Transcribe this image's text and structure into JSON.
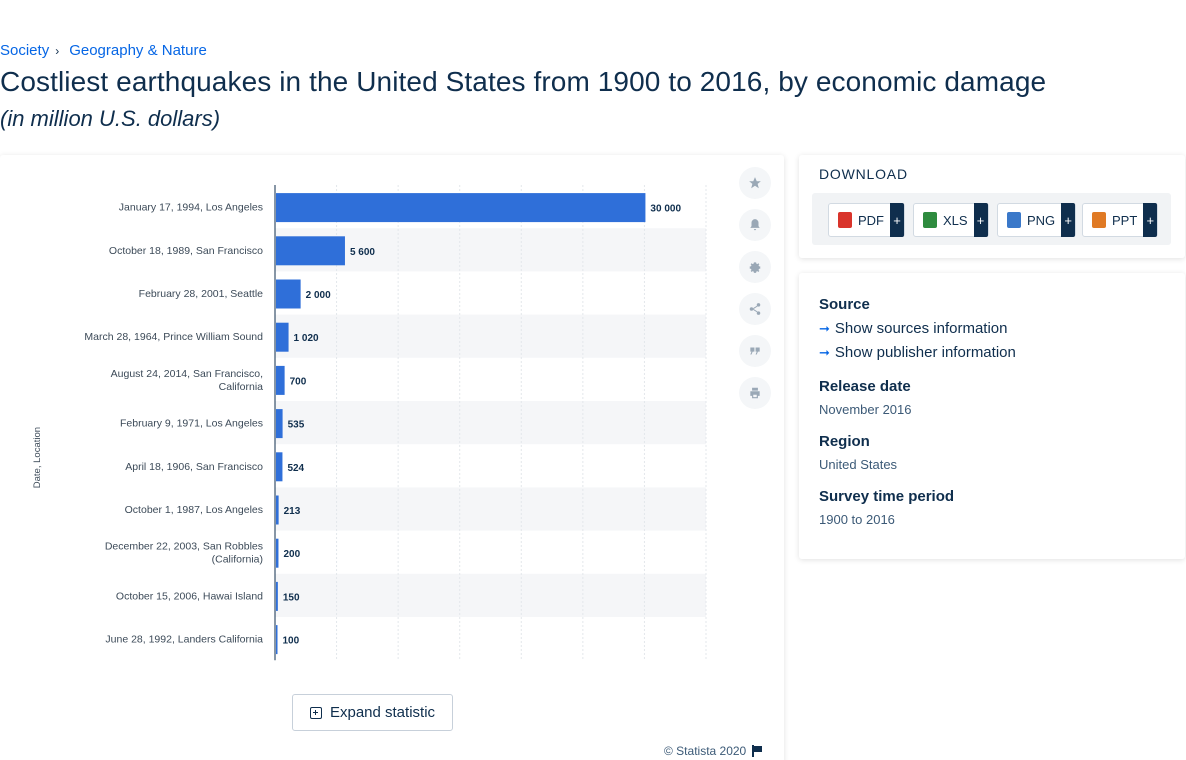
{
  "breadcrumb": {
    "items": [
      "Society",
      "Geography & Nature"
    ],
    "separator": "›"
  },
  "title": "Costliest earthquakes in the United States from 1900 to 2016, by economic damage",
  "subtitle": "(in million U.S. dollars)",
  "chart_data": {
    "type": "bar",
    "orientation": "horizontal",
    "categories": [
      "January 17, 1994, Los Angeles",
      "October 18, 1989, San Francisco",
      "February 28, 2001, Seattle",
      "March 28, 1964, Prince William Sound",
      "August 24, 2014, San Francisco, California",
      "February 9, 1971, Los Angeles",
      "April 18, 1906, San Francisco",
      "October 1, 1987, Los Angeles",
      "December 22, 2003, San Robbles (California)",
      "October 15, 2006, Hawai Island",
      "June 28, 1992, Landers California"
    ],
    "values": [
      30000,
      5600,
      2000,
      1020,
      700,
      535,
      524,
      213,
      200,
      150,
      100
    ],
    "value_labels": [
      "30 000",
      "5 600",
      "2 000",
      "1 020",
      "700",
      "535",
      "524",
      "213",
      "200",
      "150",
      "100"
    ],
    "ylabel": "Date, Location",
    "xlim": [
      0,
      35000
    ],
    "grid": true,
    "bar_color": "#2f6fd9"
  },
  "tools": [
    {
      "name": "favorite-star-icon"
    },
    {
      "name": "notification-bell-icon"
    },
    {
      "name": "settings-gear-icon"
    },
    {
      "name": "share-icon"
    },
    {
      "name": "citation-quote-icon"
    },
    {
      "name": "print-icon"
    }
  ],
  "expand_label": "Expand statistic",
  "copyright": "© Statista 2020",
  "download": {
    "heading": "DOWNLOAD",
    "buttons": [
      {
        "label": "PDF",
        "plus": "+",
        "color": "#d9342b"
      },
      {
        "label": "XLS",
        "plus": "+",
        "color": "#2e8b3e"
      },
      {
        "label": "PNG",
        "plus": "+",
        "color": "#3a78c9"
      },
      {
        "label": "PPT",
        "plus": "+",
        "color": "#e07a24"
      }
    ]
  },
  "info": {
    "source_label": "Source",
    "show_sources": "Show sources information",
    "show_publisher": "Show publisher information",
    "release_label": "Release date",
    "release_value": "November 2016",
    "region_label": "Region",
    "region_value": "United States",
    "survey_label": "Survey time period",
    "survey_value": "1900 to 2016"
  }
}
